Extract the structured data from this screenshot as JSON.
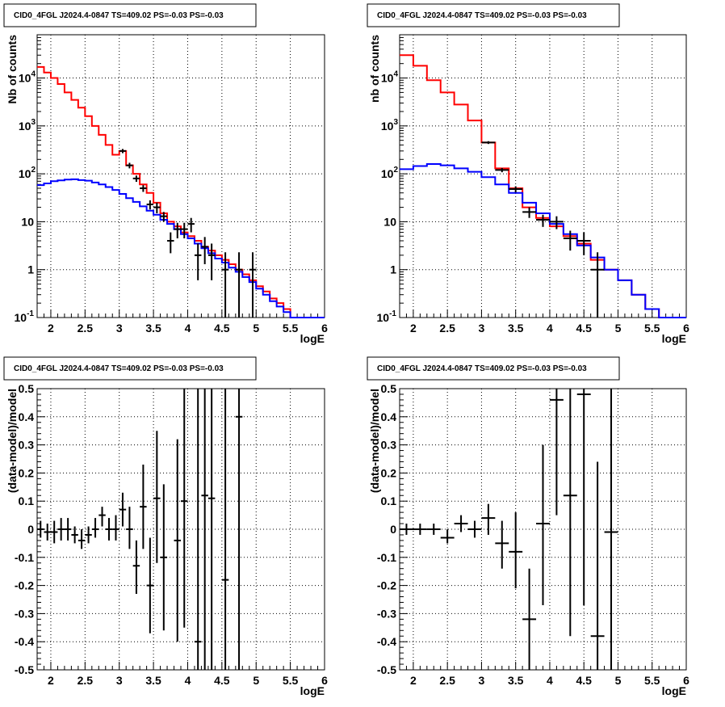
{
  "chart_data": [
    {
      "type": "line",
      "title": "CID0_4FGL J2024.4-0847 TS=409.02 PS=-0.03 PS=-0.03",
      "xlabel": "logE",
      "ylabel": "Nb of counts",
      "xlim": [
        1.8,
        6.0
      ],
      "ylim": [
        0.1,
        80000
      ],
      "yscale": "log",
      "grid": true,
      "xticks": [
        "2",
        "2.5",
        "3",
        "3.5",
        "4",
        "4.5",
        "5",
        "5.5",
        "6"
      ],
      "yticks": [
        "10^-1",
        "1",
        "10",
        "10^2",
        "10^3",
        "10^4"
      ],
      "series": [
        {
          "color": "#ff0000",
          "style": "step",
          "edges": [
            1.8,
            1.9,
            2.0,
            2.1,
            2.2,
            2.3,
            2.4,
            2.5,
            2.6,
            2.7,
            2.8,
            2.9,
            3.0,
            3.1,
            3.2,
            3.3,
            3.4,
            3.5,
            3.6,
            3.7,
            3.8,
            3.9,
            4.0,
            4.1,
            4.2,
            4.3,
            4.4,
            4.5,
            4.6,
            4.7,
            4.8,
            4.9,
            5.0,
            5.1,
            5.2,
            5.3,
            5.4,
            5.5,
            5.6,
            5.7,
            5.8,
            5.9,
            6.0
          ],
          "values": [
            17000,
            13000,
            10000,
            7500,
            5000,
            3500,
            2400,
            1600,
            1000,
            650,
            400,
            250,
            300,
            150,
            100,
            60,
            40,
            25,
            15,
            10,
            8,
            6,
            5,
            4,
            3,
            2.5,
            2,
            1.6,
            1.3,
            1,
            0.8,
            0.6,
            0.45,
            0.35,
            0.25,
            0.2,
            0.15,
            0.1,
            0.1,
            0.1,
            0.1,
            0.1
          ]
        },
        {
          "color": "#0000ff",
          "style": "step",
          "edges": [
            1.8,
            1.9,
            2.0,
            2.1,
            2.2,
            2.3,
            2.4,
            2.5,
            2.6,
            2.7,
            2.8,
            2.9,
            3.0,
            3.1,
            3.2,
            3.3,
            3.4,
            3.5,
            3.6,
            3.7,
            3.8,
            3.9,
            4.0,
            4.1,
            4.2,
            4.3,
            4.4,
            4.5,
            4.6,
            4.7,
            4.8,
            4.9,
            5.0,
            5.1,
            5.2,
            5.3,
            5.4,
            5.5,
            5.6,
            5.7,
            5.8,
            5.9,
            6.0
          ],
          "values": [
            58,
            63,
            70,
            73,
            76,
            77,
            74,
            72,
            66,
            60,
            53,
            46,
            38,
            31,
            26,
            21,
            17,
            14,
            11,
            9,
            7,
            5.5,
            4.5,
            3.5,
            2.8,
            2.2,
            1.7,
            1.4,
            1.1,
            0.9,
            0.7,
            0.55,
            0.4,
            0.3,
            0.22,
            0.17,
            0.13,
            0.1,
            0.1,
            0.1,
            0.1,
            0.1
          ]
        },
        {
          "color": "#000000",
          "style": "errorbar",
          "points": [
            {
              "x": 3.05,
              "y": 300,
              "xerr": 0.05,
              "ylo": 270,
              "yhi": 330
            },
            {
              "x": 3.15,
              "y": 150,
              "xerr": 0.05,
              "ylo": 130,
              "yhi": 170
            },
            {
              "x": 3.25,
              "y": 80,
              "xerr": 0.05,
              "ylo": 68,
              "yhi": 92
            },
            {
              "x": 3.35,
              "y": 50,
              "xerr": 0.05,
              "ylo": 42,
              "yhi": 58
            },
            {
              "x": 3.45,
              "y": 23,
              "xerr": 0.05,
              "ylo": 18,
              "yhi": 28
            },
            {
              "x": 3.55,
              "y": 20,
              "xerr": 0.05,
              "ylo": 15,
              "yhi": 25
            },
            {
              "x": 3.65,
              "y": 13,
              "xerr": 0.05,
              "ylo": 10,
              "yhi": 16
            },
            {
              "x": 3.75,
              "y": 4,
              "xerr": 0.05,
              "ylo": 2.2,
              "yhi": 6
            },
            {
              "x": 3.85,
              "y": 7,
              "xerr": 0.05,
              "ylo": 4.5,
              "yhi": 9.5
            },
            {
              "x": 3.95,
              "y": 7,
              "xerr": 0.05,
              "ylo": 4.5,
              "yhi": 9.5
            },
            {
              "x": 4.05,
              "y": 9,
              "xerr": 0.05,
              "ylo": 6,
              "yhi": 12
            },
            {
              "x": 4.15,
              "y": 2,
              "xerr": 0.05,
              "ylo": 0.6,
              "yhi": 3.5
            },
            {
              "x": 4.25,
              "y": 3,
              "xerr": 0.05,
              "ylo": 1.3,
              "yhi": 4.8
            },
            {
              "x": 4.35,
              "y": 2,
              "xerr": 0.05,
              "ylo": 0.6,
              "yhi": 3.5
            },
            {
              "x": 4.55,
              "y": 1,
              "xerr": 0.05,
              "ylo": 0.1,
              "yhi": 2.3
            },
            {
              "x": 4.75,
              "y": 1,
              "xerr": 0.05,
              "ylo": 0.1,
              "yhi": 2.3
            },
            {
              "x": 4.95,
              "y": 1,
              "xerr": 0.05,
              "ylo": 0.1,
              "yhi": 2.3
            }
          ]
        }
      ]
    },
    {
      "type": "line",
      "title": "CID0_4FGL J2024.4-0847 TS=409.02 PS=-0.03 PS=-0.03",
      "xlabel": "logE",
      "ylabel": "nb of counts",
      "xlim": [
        1.8,
        6.0
      ],
      "ylim": [
        0.1,
        80000
      ],
      "yscale": "log",
      "grid": true,
      "xticks": [
        "2",
        "2.5",
        "3",
        "3.5",
        "4",
        "4.5",
        "5",
        "5.5",
        "6"
      ],
      "yticks": [
        "10^-1",
        "1",
        "10",
        "10^2",
        "10^3",
        "10^4"
      ],
      "series": [
        {
          "color": "#ff0000",
          "style": "step",
          "edges": [
            1.8,
            2.0,
            2.2,
            2.4,
            2.6,
            2.8,
            3.0,
            3.2,
            3.4,
            3.6,
            3.8,
            4.0,
            4.2,
            4.4,
            4.6,
            4.8,
            5.0,
            5.2,
            5.4,
            5.6,
            5.8,
            6.0
          ],
          "values": [
            30000,
            18000,
            9000,
            5000,
            2800,
            1300,
            450,
            130,
            50,
            20,
            12,
            8,
            5,
            3.5,
            1.6,
            1,
            0.6,
            0.3,
            0.15,
            0.1,
            0.1
          ]
        },
        {
          "color": "#0000ff",
          "style": "step",
          "edges": [
            1.8,
            2.0,
            2.2,
            2.4,
            2.6,
            2.8,
            3.0,
            3.2,
            3.4,
            3.6,
            3.8,
            4.0,
            4.2,
            4.4,
            4.6,
            4.8,
            5.0,
            5.2,
            5.4,
            5.6,
            5.8,
            6.0
          ],
          "values": [
            125,
            145,
            160,
            150,
            130,
            110,
            85,
            60,
            40,
            25,
            15,
            9,
            5.5,
            3.2,
            1.8,
            1,
            0.6,
            0.3,
            0.15,
            0.1,
            0.1
          ]
        },
        {
          "color": "#000000",
          "style": "errorbar",
          "points": [
            {
              "x": 3.1,
              "y": 450,
              "xerr": 0.1,
              "ylo": 420,
              "yhi": 480
            },
            {
              "x": 3.3,
              "y": 120,
              "xerr": 0.1,
              "ylo": 108,
              "yhi": 132
            },
            {
              "x": 3.5,
              "y": 48,
              "xerr": 0.1,
              "ylo": 41,
              "yhi": 55
            },
            {
              "x": 3.7,
              "y": 16,
              "xerr": 0.1,
              "ylo": 12,
              "yhi": 20
            },
            {
              "x": 3.9,
              "y": 11,
              "xerr": 0.1,
              "ylo": 7.8,
              "yhi": 14
            },
            {
              "x": 4.1,
              "y": 10,
              "xerr": 0.1,
              "ylo": 7,
              "yhi": 13
            },
            {
              "x": 4.3,
              "y": 4.5,
              "xerr": 0.1,
              "ylo": 2.5,
              "yhi": 6.5
            },
            {
              "x": 4.5,
              "y": 4,
              "xerr": 0.1,
              "ylo": 2,
              "yhi": 6
            },
            {
              "x": 4.7,
              "y": 1,
              "xerr": 0.1,
              "ylo": 0.1,
              "yhi": 2.3
            }
          ]
        }
      ]
    },
    {
      "type": "scatter",
      "title": "CID0_4FGL J2024.4-0847 TS=409.02 PS=-0.03 PS=-0.03",
      "xlabel": "logE",
      "ylabel": "(data-model)/model",
      "xlim": [
        1.8,
        6.0
      ],
      "ylim": [
        -0.5,
        0.5
      ],
      "grid": true,
      "xticks": [
        "2",
        "2.5",
        "3",
        "3.5",
        "4",
        "4.5",
        "5",
        "5.5",
        "6"
      ],
      "yticks": [
        "-0.5",
        "-0.4",
        "-0.3",
        "-0.2",
        "-0.1",
        "0",
        "0.1",
        "0.2",
        "0.3",
        "0.4",
        "0.5"
      ],
      "series": [
        {
          "color": "#000000",
          "style": "errorbar",
          "points": [
            {
              "x": 1.85,
              "y": 0.0,
              "xerr": 0.05,
              "ylo": -0.03,
              "yhi": 0.03
            },
            {
              "x": 1.95,
              "y": -0.01,
              "xerr": 0.05,
              "ylo": -0.04,
              "yhi": 0.02
            },
            {
              "x": 2.05,
              "y": -0.01,
              "xerr": 0.05,
              "ylo": -0.05,
              "yhi": 0.03
            },
            {
              "x": 2.15,
              "y": 0.0,
              "xerr": 0.05,
              "ylo": -0.04,
              "yhi": 0.04
            },
            {
              "x": 2.25,
              "y": 0.0,
              "xerr": 0.05,
              "ylo": -0.04,
              "yhi": 0.04
            },
            {
              "x": 2.35,
              "y": -0.02,
              "xerr": 0.05,
              "ylo": -0.05,
              "yhi": 0.01
            },
            {
              "x": 2.45,
              "y": -0.04,
              "xerr": 0.05,
              "ylo": -0.07,
              "yhi": 0.0
            },
            {
              "x": 2.55,
              "y": -0.02,
              "xerr": 0.05,
              "ylo": -0.05,
              "yhi": 0.01
            },
            {
              "x": 2.65,
              "y": 0.0,
              "xerr": 0.05,
              "ylo": -0.03,
              "yhi": 0.04
            },
            {
              "x": 2.75,
              "y": 0.05,
              "xerr": 0.05,
              "ylo": 0.01,
              "yhi": 0.08
            },
            {
              "x": 2.85,
              "y": 0.0,
              "xerr": 0.05,
              "ylo": -0.04,
              "yhi": 0.04
            },
            {
              "x": 2.95,
              "y": 0.0,
              "xerr": 0.05,
              "ylo": -0.04,
              "yhi": 0.05
            },
            {
              "x": 3.05,
              "y": 0.07,
              "xerr": 0.05,
              "ylo": 0.01,
              "yhi": 0.13
            },
            {
              "x": 3.15,
              "y": 0.0,
              "xerr": 0.05,
              "ylo": -0.07,
              "yhi": 0.08
            },
            {
              "x": 3.25,
              "y": -0.13,
              "xerr": 0.05,
              "ylo": -0.23,
              "yhi": -0.04
            },
            {
              "x": 3.35,
              "y": 0.08,
              "xerr": 0.05,
              "ylo": -0.07,
              "yhi": 0.23
            },
            {
              "x": 3.45,
              "y": -0.2,
              "xerr": 0.05,
              "ylo": -0.37,
              "yhi": -0.03
            },
            {
              "x": 3.55,
              "y": 0.11,
              "xerr": 0.05,
              "ylo": -0.12,
              "yhi": 0.35
            },
            {
              "x": 3.65,
              "y": -0.1,
              "xerr": 0.05,
              "ylo": -0.36,
              "yhi": 0.16
            },
            {
              "x": 3.85,
              "y": -0.04,
              "xerr": 0.05,
              "ylo": -0.4,
              "yhi": 0.32
            },
            {
              "x": 3.95,
              "y": 0.1,
              "xerr": 0.05,
              "ylo": -0.35,
              "yhi": 0.55
            },
            {
              "x": 4.15,
              "y": -0.4,
              "xerr": 0.05,
              "ylo": -0.9,
              "yhi": 0.5
            },
            {
              "x": 4.25,
              "y": 0.12,
              "xerr": 0.05,
              "ylo": -0.6,
              "yhi": 0.9
            },
            {
              "x": 4.35,
              "y": 0.11,
              "xerr": 0.05,
              "ylo": -0.7,
              "yhi": 0.9
            },
            {
              "x": 4.55,
              "y": -0.18,
              "xerr": 0.05,
              "ylo": -1.1,
              "yhi": 0.8
            },
            {
              "x": 4.75,
              "y": 0.4,
              "xerr": 0.05,
              "ylo": -0.6,
              "yhi": 1.4
            }
          ]
        }
      ]
    },
    {
      "type": "scatter",
      "title": "CID0_4FGL J2024.4-0847 TS=409.02 PS=-0.03 PS=-0.03",
      "xlabel": "logE",
      "ylabel": "(data-model)/model",
      "xlim": [
        1.8,
        6.0
      ],
      "ylim": [
        -0.5,
        0.5
      ],
      "grid": true,
      "xticks": [
        "2",
        "2.5",
        "3",
        "3.5",
        "4",
        "4.5",
        "5",
        "5.5",
        "6"
      ],
      "yticks": [
        "-0.5",
        "-0.4",
        "-0.3",
        "-0.2",
        "-0.1",
        "0",
        "0.1",
        "0.2",
        "0.3",
        "0.4",
        "0.5"
      ],
      "series": [
        {
          "color": "#000000",
          "style": "errorbar",
          "points": [
            {
              "x": 1.9,
              "y": 0.0,
              "xerr": 0.1,
              "ylo": -0.02,
              "yhi": 0.02
            },
            {
              "x": 2.1,
              "y": 0.0,
              "xerr": 0.1,
              "ylo": -0.02,
              "yhi": 0.02
            },
            {
              "x": 2.3,
              "y": 0.0,
              "xerr": 0.1,
              "ylo": -0.02,
              "yhi": 0.02
            },
            {
              "x": 2.5,
              "y": -0.03,
              "xerr": 0.1,
              "ylo": -0.05,
              "yhi": 0.0
            },
            {
              "x": 2.7,
              "y": 0.02,
              "xerr": 0.1,
              "ylo": -0.01,
              "yhi": 0.05
            },
            {
              "x": 2.9,
              "y": 0.0,
              "xerr": 0.1,
              "ylo": -0.03,
              "yhi": 0.03
            },
            {
              "x": 3.1,
              "y": 0.04,
              "xerr": 0.1,
              "ylo": -0.02,
              "yhi": 0.09
            },
            {
              "x": 3.3,
              "y": -0.05,
              "xerr": 0.1,
              "ylo": -0.14,
              "yhi": 0.03
            },
            {
              "x": 3.5,
              "y": -0.08,
              "xerr": 0.1,
              "ylo": -0.21,
              "yhi": 0.06
            },
            {
              "x": 3.7,
              "y": -0.32,
              "xerr": 0.1,
              "ylo": -0.5,
              "yhi": -0.14
            },
            {
              "x": 3.9,
              "y": 0.02,
              "xerr": 0.1,
              "ylo": -0.27,
              "yhi": 0.3
            },
            {
              "x": 4.1,
              "y": 0.46,
              "xerr": 0.1,
              "ylo": 0.05,
              "yhi": 0.9
            },
            {
              "x": 4.3,
              "y": 0.12,
              "xerr": 0.1,
              "ylo": -0.38,
              "yhi": 0.6
            },
            {
              "x": 4.5,
              "y": 0.48,
              "xerr": 0.1,
              "ylo": -0.27,
              "yhi": 1.2
            },
            {
              "x": 4.7,
              "y": -0.38,
              "xerr": 0.1,
              "ylo": -1.0,
              "yhi": 0.24
            },
            {
              "x": 4.9,
              "y": -0.01,
              "xerr": 0.1,
              "ylo": -1.0,
              "yhi": 1.0
            }
          ]
        }
      ]
    }
  ]
}
